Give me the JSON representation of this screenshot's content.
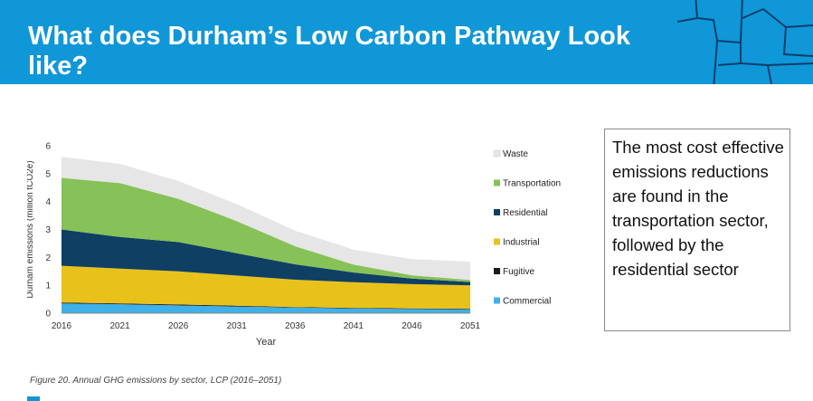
{
  "header": {
    "title": "What does Durham’s Low Carbon Pathway Look like?",
    "background_color": "#0f97d8"
  },
  "chart_data": {
    "type": "area",
    "stacked": true,
    "x": [
      2016,
      2021,
      2026,
      2031,
      2036,
      2041,
      2046,
      2051
    ],
    "x_ticks": [
      "2016",
      "2021",
      "2026",
      "2031",
      "2036",
      "2041",
      "2046",
      "2051"
    ],
    "y_ticks": [
      "0",
      "1",
      "2",
      "3",
      "4",
      "5",
      "6"
    ],
    "xlabel": "Year",
    "ylabel": "Durham emissions (million tCO2e)",
    "xlim": [
      2016,
      2051
    ],
    "ylim": [
      0,
      6
    ],
    "grid": false,
    "legend_position": "right",
    "series": [
      {
        "name": "Commercial",
        "color": "#3fb0e8",
        "values": [
          0.35,
          0.32,
          0.28,
          0.24,
          0.2,
          0.17,
          0.15,
          0.14
        ]
      },
      {
        "name": "Fugitive",
        "color": "#1a1a1a",
        "values": [
          0.03,
          0.03,
          0.03,
          0.03,
          0.02,
          0.02,
          0.02,
          0.02
        ]
      },
      {
        "name": "Industrial",
        "color": "#e8c21a",
        "values": [
          1.32,
          1.25,
          1.19,
          1.08,
          0.98,
          0.92,
          0.87,
          0.84
        ]
      },
      {
        "name": "Residential",
        "color": "#0f3f63",
        "values": [
          1.3,
          1.13,
          1.05,
          0.8,
          0.55,
          0.35,
          0.2,
          0.12
        ]
      },
      {
        "name": "Transportation",
        "color": "#86c257",
        "values": [
          1.85,
          1.93,
          1.55,
          1.15,
          0.65,
          0.28,
          0.12,
          0.07
        ]
      },
      {
        "name": "Waste",
        "color": "#e6e6e6",
        "values": [
          0.75,
          0.69,
          0.64,
          0.61,
          0.56,
          0.54,
          0.58,
          0.66
        ]
      }
    ]
  },
  "caption": "Figure 20. Annual GHG emissions by sector, LCP (2016–2051)",
  "side_note": "The most cost effective emissions reductions are found in the transportation sector, followed by the residential sector"
}
